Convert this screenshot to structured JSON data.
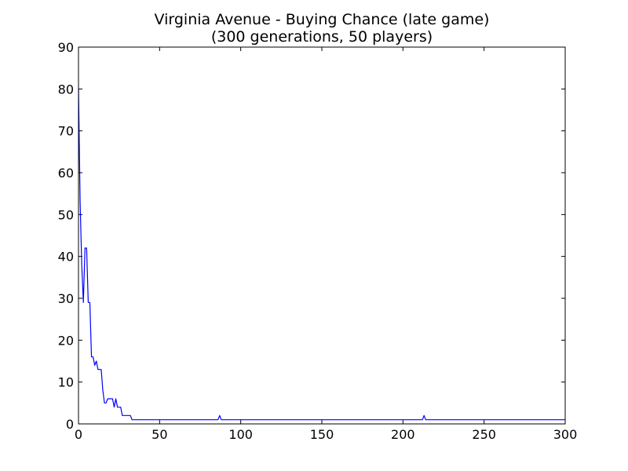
{
  "chart_data": {
    "type": "line",
    "title": "Virginia Avenue - Buying Chance (late game)",
    "subtitle": "(300 generations, 50 players)",
    "xlabel": "",
    "ylabel": "",
    "xlim": [
      0,
      300
    ],
    "ylim": [
      0,
      90
    ],
    "xticks": [
      "0",
      "50",
      "100",
      "150",
      "200",
      "250",
      "300"
    ],
    "yticks": [
      "0",
      "10",
      "20",
      "30",
      "40",
      "50",
      "60",
      "70",
      "80",
      "90"
    ],
    "grid": false,
    "series": [
      {
        "color": "#0000ff",
        "points": [
          [
            0,
            80
          ],
          [
            1,
            53
          ],
          [
            2,
            38
          ],
          [
            3,
            29
          ],
          [
            4,
            42
          ],
          [
            5,
            42
          ],
          [
            6,
            29
          ],
          [
            7,
            29
          ],
          [
            8,
            16
          ],
          [
            9,
            16
          ],
          [
            10,
            14
          ],
          [
            11,
            15
          ],
          [
            12,
            13
          ],
          [
            13,
            13
          ],
          [
            14,
            13
          ],
          [
            15,
            8
          ],
          [
            16,
            5
          ],
          [
            17,
            5
          ],
          [
            18,
            6
          ],
          [
            19,
            6
          ],
          [
            20,
            6
          ],
          [
            21,
            6
          ],
          [
            22,
            4
          ],
          [
            23,
            6
          ],
          [
            24,
            4
          ],
          [
            25,
            4
          ],
          [
            26,
            4
          ],
          [
            27,
            2
          ],
          [
            28,
            2
          ],
          [
            29,
            2
          ],
          [
            30,
            2
          ],
          [
            31,
            2
          ],
          [
            32,
            2
          ],
          [
            33,
            1
          ],
          [
            34,
            1
          ],
          [
            86,
            1
          ],
          [
            87,
            2
          ],
          [
            88,
            1
          ],
          [
            212,
            1
          ],
          [
            213,
            2
          ],
          [
            214,
            1
          ],
          [
            300,
            1
          ]
        ]
      }
    ]
  }
}
